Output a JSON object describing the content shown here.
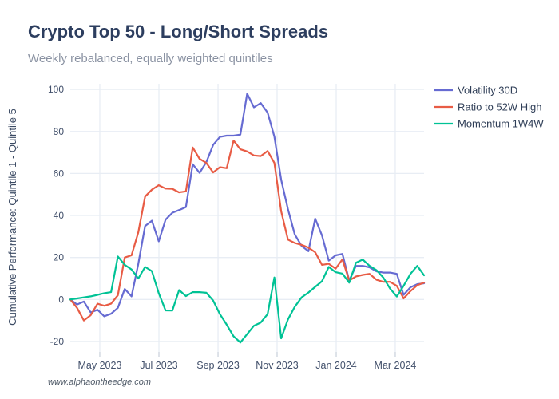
{
  "header": {
    "title": "Crypto Top 50 - Long/Short Spreads",
    "subtitle": "Weekly rebalanced, equally weighted quintiles"
  },
  "watermark": "www.alphaontheedge.com",
  "colors": {
    "purple": "#666bd2",
    "red": "#e85c45",
    "green": "#00c295",
    "grid": "#e8edf4",
    "tick_mark": "#ccd3dd",
    "tick_text": "#42506b",
    "title_text": "#2d3e5f",
    "subtitle_text": "#8b93a3",
    "axis_title_text": "#3b4a63",
    "legend_text": "#2f3e57",
    "watermark_text": "#4d5866"
  },
  "chart_data": {
    "type": "line",
    "title": "Crypto Top 50 - Long/Short Spreads",
    "subtitle": "Weekly rebalanced, equally weighted quintiles",
    "ylabel": "Cumulative Performance: Quintile 1 - Quintile 5",
    "xlabel": "",
    "grid": true,
    "legend_position": "top-right",
    "ylim": [
      -25,
      103
    ],
    "y_ticks": [
      -20,
      0,
      20,
      40,
      60,
      80,
      100
    ],
    "x_unit": "week index (weekly points, Apr 2023 - Mar 2024)",
    "x_ticks": [
      {
        "label": "May 2023",
        "week": 4.34
      },
      {
        "label": "Jul 2023",
        "week": 13.03
      },
      {
        "label": "Sep 2023",
        "week": 21.72
      },
      {
        "label": "Nov 2023",
        "week": 30.4
      },
      {
        "label": "Jan 2024",
        "week": 39.09
      },
      {
        "label": "Mar 2024",
        "week": 47.77
      }
    ],
    "series": [
      {
        "name": "Volatility 30D",
        "color_key": "purple",
        "values": [
          0,
          -2.4,
          -1,
          -6.2,
          -4.9,
          -8,
          -6.8,
          -4,
          5,
          1.5,
          17,
          35,
          37.5,
          27.7,
          38,
          41.3,
          42.6,
          44,
          64.4,
          60.3,
          65.4,
          73.6,
          77.4,
          78,
          78,
          78.5,
          98,
          91.5,
          93.5,
          89,
          77.5,
          57,
          43,
          31,
          25.5,
          23,
          38.5,
          30.5,
          18.5,
          21,
          21.7,
          9,
          16,
          16,
          15.3,
          13.4,
          12.8,
          12.8,
          12.2,
          2.2,
          5.8,
          7.3,
          7.7
        ]
      },
      {
        "name": "Ratio to 52W High",
        "color_key": "red",
        "values": [
          0,
          -4,
          -10,
          -7.5,
          -2,
          -3,
          -2,
          2,
          20,
          21,
          32,
          49,
          52.3,
          54.4,
          52.8,
          52.7,
          51,
          51.5,
          72.4,
          67,
          65,
          60.5,
          63,
          62.5,
          75.7,
          71.5,
          70.5,
          68.6,
          68.3,
          70.7,
          65,
          42,
          28.5,
          26.9,
          26,
          24.7,
          22.5,
          16.5,
          17,
          14.7,
          19.1,
          9,
          11,
          11.7,
          12.2,
          9.4,
          8.4,
          8.4,
          6.5,
          0.5,
          4,
          6.8,
          8
        ]
      },
      {
        "name": "Momentum 1W4W",
        "color_key": "green",
        "values": [
          0,
          0.5,
          1,
          1.5,
          2.2,
          3,
          3.5,
          20.5,
          16.5,
          14.3,
          10,
          15.5,
          13.5,
          3,
          -5.2,
          -5.3,
          4.5,
          1.6,
          3.5,
          3.5,
          3.2,
          -0.5,
          -7,
          -12,
          -17.5,
          -20.5,
          -16.5,
          -12.5,
          -11,
          -7,
          10.5,
          -18.5,
          -9.5,
          -3.5,
          1,
          3.3,
          6,
          8.7,
          15.5,
          13,
          12.3,
          8,
          17.5,
          19,
          16,
          14,
          10.5,
          5.2,
          1.4,
          6.5,
          12.2,
          16,
          11.5
        ]
      }
    ]
  }
}
